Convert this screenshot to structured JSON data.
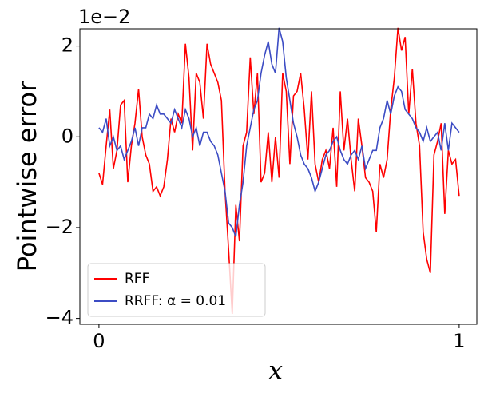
{
  "chart_data": {
    "type": "line",
    "x_label": "x",
    "y_label": "Pointwise error",
    "y_offset_text": "1e−2",
    "x": [
      0,
      0.01,
      0.02,
      0.03,
      0.04,
      0.05,
      0.06,
      0.07,
      0.08,
      0.09,
      0.1,
      0.11,
      0.12,
      0.13,
      0.14,
      0.15,
      0.16,
      0.17,
      0.18,
      0.19,
      0.2,
      0.21,
      0.22,
      0.23,
      0.24,
      0.25,
      0.26,
      0.27,
      0.28,
      0.29,
      0.3,
      0.31,
      0.32,
      0.33,
      0.34,
      0.35,
      0.36,
      0.37,
      0.38,
      0.39,
      0.4,
      0.41,
      0.42,
      0.43,
      0.44,
      0.45,
      0.46,
      0.47,
      0.48,
      0.49,
      0.5,
      0.51,
      0.52,
      0.53,
      0.54,
      0.55,
      0.56,
      0.57,
      0.58,
      0.59,
      0.6,
      0.61,
      0.62,
      0.63,
      0.64,
      0.65,
      0.66,
      0.67,
      0.68,
      0.69,
      0.7,
      0.71,
      0.72,
      0.73,
      0.74,
      0.75,
      0.76,
      0.77,
      0.78,
      0.79,
      0.8,
      0.81,
      0.82,
      0.83,
      0.84,
      0.85,
      0.86,
      0.87,
      0.88,
      0.89,
      0.9,
      0.91,
      0.92,
      0.93,
      0.94,
      0.95,
      0.96,
      0.97,
      0.98,
      0.99,
      1
    ],
    "series": [
      {
        "name": "RFF",
        "color": "#ff0000",
        "values": [
          -0.8,
          -1.05,
          -0.2,
          0.6,
          -0.7,
          -0.3,
          0.7,
          0.8,
          -1.0,
          -0.2,
          0.3,
          1.05,
          0.0,
          -0.4,
          -0.6,
          -1.2,
          -1.1,
          -1.3,
          -1.1,
          -0.5,
          0.4,
          0.1,
          0.5,
          0.3,
          2.05,
          1.3,
          -0.3,
          1.4,
          1.2,
          0.4,
          2.05,
          1.6,
          1.4,
          1.2,
          0.8,
          -1.2,
          -2.5,
          -3.9,
          -1.5,
          -2.3,
          -0.2,
          0.1,
          1.75,
          0.5,
          1.4,
          -1.0,
          -0.8,
          0.1,
          -1.0,
          0.0,
          -0.9,
          1.4,
          1.0,
          -0.6,
          0.9,
          1.0,
          1.4,
          0.6,
          -0.5,
          1.0,
          -0.6,
          -1.0,
          -0.5,
          -0.3,
          -0.7,
          0.2,
          -1.1,
          1.0,
          -0.3,
          0.4,
          -0.5,
          -1.2,
          0.4,
          -0.2,
          -0.9,
          -1.0,
          -1.2,
          -2.1,
          -0.6,
          -0.9,
          -0.5,
          0.6,
          1.3,
          2.4,
          1.9,
          2.2,
          0.5,
          1.5,
          0.3,
          -0.2,
          -2.1,
          -2.7,
          -3.0,
          -0.4,
          -0.1,
          0.3,
          -1.7,
          -0.3,
          -0.6,
          -0.5,
          -1.3
        ]
      },
      {
        "name": "RRFF: α = 0.01",
        "color": "#3c4cc4",
        "values": [
          0.2,
          0.1,
          0.4,
          -0.2,
          0.0,
          -0.3,
          -0.2,
          -0.5,
          -0.3,
          -0.1,
          0.2,
          -0.2,
          0.2,
          0.2,
          0.5,
          0.4,
          0.7,
          0.5,
          0.5,
          0.4,
          0.3,
          0.6,
          0.4,
          0.2,
          0.6,
          0.4,
          0.0,
          0.2,
          -0.2,
          0.1,
          0.1,
          -0.1,
          -0.2,
          -0.4,
          -0.8,
          -1.2,
          -1.9,
          -2.0,
          -2.2,
          -1.5,
          -1.0,
          -0.2,
          0.2,
          0.6,
          0.8,
          1.4,
          1.8,
          2.1,
          1.6,
          1.4,
          2.4,
          2.1,
          1.3,
          0.8,
          0.3,
          0.0,
          -0.4,
          -0.6,
          -0.7,
          -0.9,
          -1.2,
          -1.0,
          -0.7,
          -0.4,
          -0.3,
          -0.1,
          0.0,
          -0.3,
          -0.5,
          -0.6,
          -0.4,
          -0.3,
          -0.5,
          -0.2,
          -0.7,
          -0.5,
          -0.3,
          -0.3,
          0.2,
          0.4,
          0.8,
          0.5,
          0.9,
          1.1,
          1.0,
          0.6,
          0.5,
          0.4,
          0.2,
          0.1,
          -0.1,
          0.2,
          -0.1,
          0.0,
          0.1,
          -0.3,
          0.3,
          -0.3,
          0.3,
          0.2,
          0.1
        ]
      }
    ],
    "xlim": [
      -0.053,
      1.049
    ],
    "xticks": [
      0,
      1
    ],
    "ylim": [
      -4.13,
      2.38
    ],
    "yticks": [
      {
        "value": -4,
        "label": "−4"
      },
      {
        "value": -2,
        "label": "−2"
      },
      0,
      2
    ],
    "legend": "lower left"
  }
}
